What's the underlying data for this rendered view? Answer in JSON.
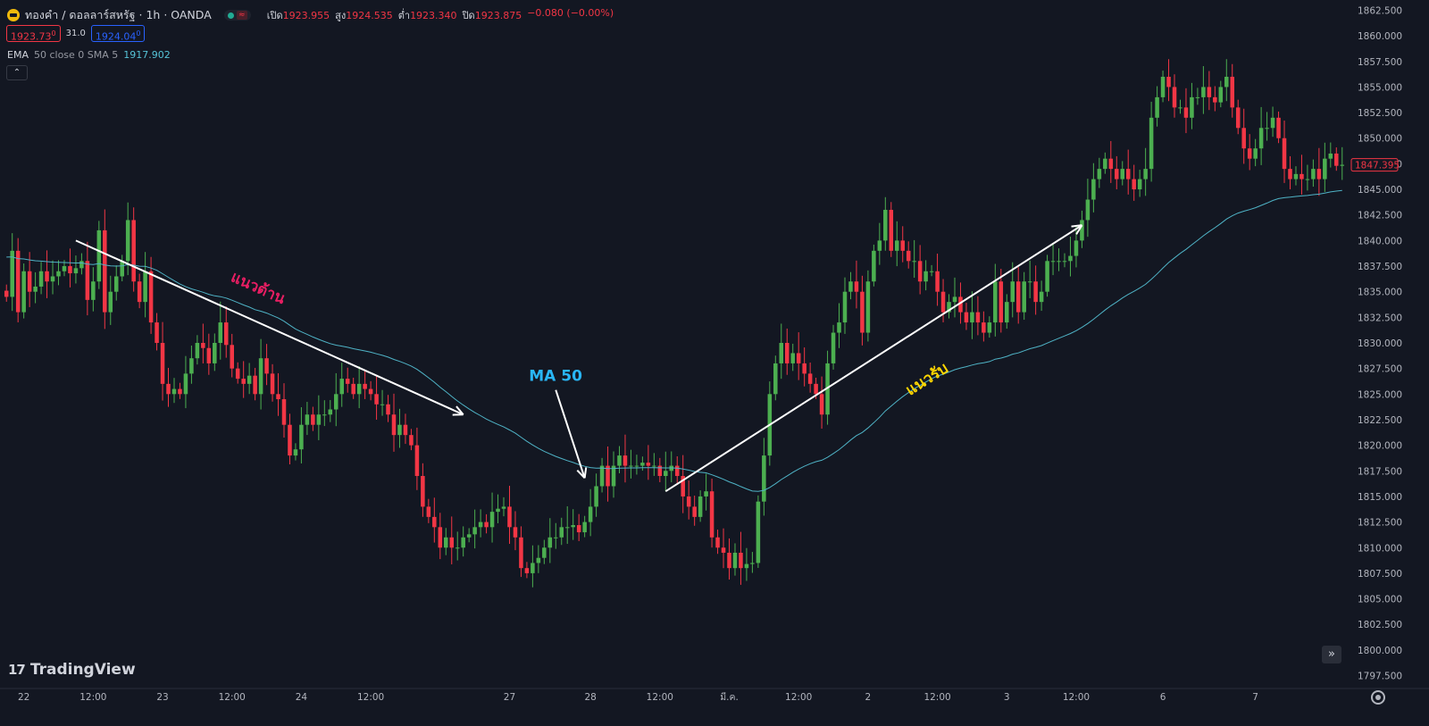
{
  "header": {
    "title": "ทองคำ / ดอลลาร์สหรัฐ · 1h · OANDA",
    "ohlc": {
      "open_label": "เปิด",
      "open": "1923.955",
      "high_label": "สูง",
      "high": "1924.535",
      "low_label": "ต่ำ",
      "low": "1923.340",
      "close_label": "ปิด",
      "close": "1923.875",
      "change": "−0.080 (−0.00%)"
    },
    "wave_icon": "≈"
  },
  "prices": {
    "bid": "1923.73",
    "bid_sup": "0",
    "spread": "31.0",
    "ask": "1924.04",
    "ask_sup": "0"
  },
  "indicator": {
    "name": "EMA",
    "params": "50 close 0 SMA 5",
    "value": "1917.902"
  },
  "collapse_glyph": "⌃",
  "brand": {
    "mark": "17",
    "name": "TradingView"
  },
  "scroll_glyph": "»",
  "colors": {
    "up": "#4caf50",
    "down": "#f23645",
    "ema": "#4fb3c6",
    "background": "#131722",
    "axis_text": "#b2b5be"
  },
  "chart_data": {
    "type": "candlestick",
    "ylim": [
      1796.5,
      1863.5
    ],
    "y_ticks": [
      "1862.500",
      "1860.000",
      "1857.500",
      "1855.000",
      "1852.500",
      "1850.000",
      "1847.500",
      "1845.000",
      "1842.500",
      "1840.000",
      "1837.500",
      "1835.000",
      "1832.500",
      "1830.000",
      "1827.500",
      "1825.000",
      "1822.500",
      "1820.000",
      "1817.500",
      "1815.000",
      "1812.500",
      "1810.000",
      "1807.500",
      "1805.000",
      "1802.500",
      "1800.000",
      "1797.500"
    ],
    "x_ticks": [
      {
        "label": "22",
        "bar": 3
      },
      {
        "label": "12:00",
        "bar": 15
      },
      {
        "label": "23",
        "bar": 27
      },
      {
        "label": "12:00",
        "bar": 39
      },
      {
        "label": "24",
        "bar": 51
      },
      {
        "label": "12:00",
        "bar": 63
      },
      {
        "label": "27",
        "bar": 87
      },
      {
        "label": "28",
        "bar": 101
      },
      {
        "label": "12:00",
        "bar": 113
      },
      {
        "label": "มี.ค.",
        "bar": 125
      },
      {
        "label": "12:00",
        "bar": 137
      },
      {
        "label": "2",
        "bar": 149
      },
      {
        "label": "12:00",
        "bar": 161
      },
      {
        "label": "3",
        "bar": 173
      },
      {
        "label": "12:00",
        "bar": 185
      },
      {
        "label": "6",
        "bar": 200
      },
      {
        "label": "7",
        "bar": 216
      }
    ],
    "last_price": "1847.395",
    "series_name": "",
    "ema_period": 50,
    "ema_seed": 1838.5,
    "ema_smoothing": 0.03,
    "closes": [
      1834.5,
      1839,
      1833,
      1837,
      1835,
      1835.5,
      1837,
      1836,
      1836.5,
      1837,
      1837.5,
      1836.8,
      1837.3,
      1838,
      1834.2,
      1836,
      1841,
      1833,
      1835,
      1836.5,
      1838,
      1842,
      1836,
      1834,
      1837,
      1832,
      1830,
      1826,
      1825,
      1825.5,
      1825,
      1827,
      1828.5,
      1830,
      1829.5,
      1828,
      1830,
      1832,
      1829.8,
      1827.5,
      1826.5,
      1826,
      1826.8,
      1825,
      1828.5,
      1827,
      1825,
      1824.5,
      1822,
      1819,
      1819.6,
      1822,
      1823,
      1822,
      1823,
      1823,
      1823.5,
      1825,
      1826.5,
      1826,
      1825,
      1826,
      1825.5,
      1825,
      1824,
      1824,
      1823,
      1821,
      1822,
      1821,
      1820,
      1817,
      1814,
      1813,
      1812,
      1810,
      1811,
      1810,
      1810,
      1811,
      1811.3,
      1812,
      1812.5,
      1812,
      1813.5,
      1813.8,
      1814,
      1812,
      1811,
      1808,
      1807.5,
      1808.5,
      1809,
      1810,
      1811,
      1811,
      1812,
      1812,
      1812.2,
      1811.5,
      1812.5,
      1814,
      1816,
      1818,
      1816,
      1818,
      1819,
      1818,
      1818,
      1818,
      1818.3,
      1818,
      1818,
      1817,
      1817.5,
      1818,
      1817,
      1815,
      1814,
      1813,
      1815,
      1815.5,
      1811,
      1810,
      1809.5,
      1808,
      1809.5,
      1808,
      1808.4,
      1808.5,
      1814.5,
      1819,
      1825,
      1828,
      1830,
      1828,
      1829,
      1828,
      1827,
      1826,
      1825,
      1823,
      1828,
      1831,
      1832,
      1835,
      1836,
      1835,
      1831,
      1836,
      1839,
      1840,
      1843,
      1839,
      1840,
      1839,
      1838,
      1838,
      1836,
      1837,
      1837,
      1835,
      1833,
      1834,
      1834.5,
      1833,
      1832,
      1833,
      1832,
      1831,
      1832,
      1836,
      1832,
      1834,
      1836,
      1833,
      1836,
      1836,
      1834,
      1835,
      1838,
      1838,
      1838,
      1838,
      1838.5,
      1840,
      1842,
      1844,
      1846,
      1847,
      1848,
      1847,
      1846,
      1847,
      1846,
      1845,
      1846,
      1847,
      1852,
      1854,
      1856,
      1855,
      1853,
      1853,
      1852,
      1854,
      1854,
      1855,
      1854,
      1853.5,
      1855,
      1856,
      1853,
      1851,
      1849,
      1848,
      1849,
      1851,
      1851,
      1852,
      1850,
      1847,
      1846,
      1846.5,
      1846,
      1846,
      1847,
      1846,
      1848,
      1848.5,
      1847.3,
      1847.4
    ],
    "annotations": [
      {
        "text": "แนวต้าน",
        "color": "#e91e63",
        "from": [
          12,
          1840
        ],
        "to": [
          79,
          1823
        ]
      },
      {
        "text": "MA 50",
        "color": "#29b6f6",
        "arrow_from": [
          95,
          1825.4
        ],
        "arrow_to": [
          100,
          1816.8
        ]
      },
      {
        "text": "แนวรับ",
        "color": "#ffd600",
        "from": [
          114,
          1815.5
        ],
        "to": [
          186,
          1841.5
        ]
      }
    ]
  }
}
